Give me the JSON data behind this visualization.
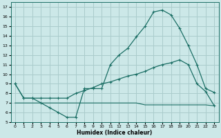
{
  "xlabel": "Humidex (Indice chaleur)",
  "bg_color": "#cce8e8",
  "grid_color": "#aacccc",
  "line_color": "#1a6e64",
  "xlim": [
    -0.5,
    23.5
  ],
  "ylim": [
    5,
    17.5
  ],
  "xtick_labels": [
    "0",
    "1",
    "2",
    "3",
    "4",
    "5",
    "6",
    "7",
    "8",
    "9",
    "10",
    "11",
    "12",
    "13",
    "14",
    "15",
    "16",
    "17",
    "18",
    "19",
    "20",
    "21",
    "22",
    "23"
  ],
  "xtick_vals": [
    0,
    1,
    2,
    3,
    4,
    5,
    6,
    7,
    8,
    9,
    10,
    11,
    12,
    13,
    14,
    15,
    16,
    17,
    18,
    19,
    20,
    21,
    22,
    23
  ],
  "ytick_vals": [
    5,
    6,
    7,
    8,
    9,
    10,
    11,
    12,
    13,
    14,
    15,
    16,
    17
  ],
  "curve1_x": [
    0,
    1,
    2,
    3,
    4,
    5,
    6,
    7,
    8,
    9,
    10,
    11,
    12,
    13,
    14,
    15,
    16,
    17,
    18,
    19,
    20,
    21,
    22,
    23
  ],
  "curve1_y": [
    9.0,
    7.5,
    7.5,
    7.0,
    6.5,
    6.0,
    5.5,
    5.5,
    8.5,
    8.5,
    8.5,
    11.0,
    12.0,
    12.7,
    13.9,
    15.0,
    16.5,
    16.7,
    16.2,
    14.8,
    13.0,
    11.0,
    8.5,
    8.1
  ],
  "curve2_x": [
    0,
    1,
    2,
    3,
    4,
    5,
    6,
    7,
    8,
    9,
    10,
    11,
    12,
    13,
    14,
    15,
    16,
    17,
    18,
    19,
    20,
    21,
    22,
    23
  ],
  "curve2_y": [
    9.0,
    7.5,
    7.5,
    7.5,
    7.5,
    7.5,
    7.5,
    8.0,
    8.3,
    8.6,
    9.0,
    9.2,
    9.5,
    9.8,
    10.0,
    10.3,
    10.7,
    11.0,
    11.2,
    11.5,
    11.0,
    9.0,
    8.2,
    6.7
  ],
  "curve3_x": [
    0,
    1,
    2,
    3,
    4,
    5,
    6,
    7,
    8,
    9,
    10,
    11,
    12,
    13,
    14,
    15,
    16,
    17,
    18,
    19,
    20,
    21,
    22,
    23
  ],
  "curve3_y": [
    7.0,
    7.0,
    7.0,
    7.0,
    7.0,
    7.0,
    7.0,
    7.0,
    7.0,
    7.0,
    7.0,
    7.0,
    7.0,
    7.0,
    7.0,
    6.8,
    6.8,
    6.8,
    6.8,
    6.8,
    6.8,
    6.8,
    6.8,
    6.7
  ]
}
